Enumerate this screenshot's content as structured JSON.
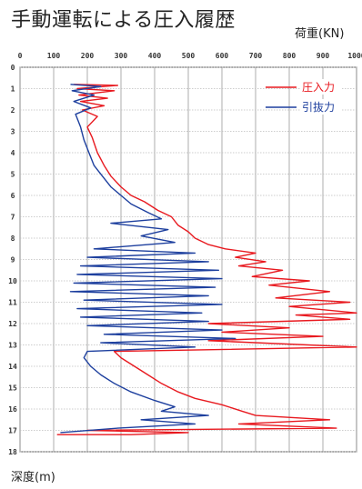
{
  "title": "手動運転による圧入履歴",
  "x_unit_label": "荷重(KN)",
  "y_unit_label": "深度(m)",
  "colors": {
    "press_in": "#e8191f",
    "pull_out": "#1d3f9e",
    "grid_major": "#9a9a9a",
    "grid_minor": "#bdbdbd"
  },
  "chart_data": {
    "type": "line",
    "title": "手動運転による圧入履歴",
    "xlabel": "荷重(KN)",
    "ylabel": "深度(m)",
    "xlim": [
      0,
      1000
    ],
    "ylim": [
      0,
      18
    ],
    "y_inverted": true,
    "grid": true,
    "legend_position": "top-right",
    "x_ticks": [
      "0",
      "100",
      "200",
      "300",
      "400",
      "500",
      "600",
      "700",
      "800",
      "900",
      "1000"
    ],
    "y_ticks": [
      "0",
      "1",
      "2",
      "3",
      "4",
      "5",
      "6",
      "7",
      "8",
      "9",
      "10",
      "11",
      "12",
      "13",
      "14",
      "15",
      "16",
      "17",
      "18"
    ],
    "series": [
      {
        "name": "圧入力",
        "color": "#e8191f",
        "points": [
          [
            160,
            0.8
          ],
          [
            290,
            0.85
          ],
          [
            170,
            1.0
          ],
          [
            280,
            1.1
          ],
          [
            175,
            1.3
          ],
          [
            260,
            1.45
          ],
          [
            180,
            1.6
          ],
          [
            250,
            1.8
          ],
          [
            185,
            2.0
          ],
          [
            230,
            2.3
          ],
          [
            200,
            2.8
          ],
          [
            215,
            3.3
          ],
          [
            230,
            4.0
          ],
          [
            250,
            4.6
          ],
          [
            270,
            5.1
          ],
          [
            300,
            5.6
          ],
          [
            330,
            6.0
          ],
          [
            370,
            6.3
          ],
          [
            410,
            6.7
          ],
          [
            450,
            7.0
          ],
          [
            470,
            7.4
          ],
          [
            500,
            7.7
          ],
          [
            520,
            8.0
          ],
          [
            560,
            8.3
          ],
          [
            610,
            8.5
          ],
          [
            700,
            8.7
          ],
          [
            640,
            8.9
          ],
          [
            730,
            9.1
          ],
          [
            650,
            9.3
          ],
          [
            780,
            9.5
          ],
          [
            690,
            9.8
          ],
          [
            860,
            10.0
          ],
          [
            740,
            10.2
          ],
          [
            920,
            10.5
          ],
          [
            760,
            10.8
          ],
          [
            980,
            11.0
          ],
          [
            800,
            11.2
          ],
          [
            1000,
            11.5
          ],
          [
            820,
            11.6
          ],
          [
            980,
            11.8
          ],
          [
            560,
            12.0
          ],
          [
            800,
            12.2
          ],
          [
            600,
            12.4
          ],
          [
            900,
            12.6
          ],
          [
            560,
            12.8
          ],
          [
            1000,
            13.1
          ],
          [
            280,
            13.3
          ],
          [
            300,
            13.6
          ],
          [
            340,
            14.0
          ],
          [
            380,
            14.4
          ],
          [
            420,
            14.8
          ],
          [
            470,
            15.2
          ],
          [
            520,
            15.5
          ],
          [
            600,
            15.8
          ],
          [
            660,
            16.1
          ],
          [
            700,
            16.3
          ],
          [
            920,
            16.5
          ],
          [
            650,
            16.7
          ],
          [
            940,
            16.9
          ],
          [
            200,
            17.0
          ],
          [
            500,
            17.1
          ],
          [
            330,
            17.2
          ],
          [
            110,
            17.2
          ]
        ]
      },
      {
        "name": "引抜力",
        "color": "#1d3f9e",
        "points": [
          [
            150,
            0.8
          ],
          [
            240,
            0.9
          ],
          [
            155,
            1.1
          ],
          [
            220,
            1.3
          ],
          [
            160,
            1.6
          ],
          [
            210,
            1.9
          ],
          [
            165,
            2.2
          ],
          [
            180,
            2.8
          ],
          [
            190,
            3.4
          ],
          [
            205,
            4.0
          ],
          [
            220,
            4.6
          ],
          [
            245,
            5.1
          ],
          [
            270,
            5.6
          ],
          [
            300,
            6.0
          ],
          [
            330,
            6.4
          ],
          [
            380,
            6.8
          ],
          [
            420,
            7.1
          ],
          [
            270,
            7.3
          ],
          [
            440,
            7.6
          ],
          [
            360,
            7.9
          ],
          [
            460,
            8.2
          ],
          [
            220,
            8.5
          ],
          [
            520,
            8.7
          ],
          [
            200,
            8.9
          ],
          [
            560,
            9.1
          ],
          [
            180,
            9.3
          ],
          [
            590,
            9.5
          ],
          [
            170,
            9.7
          ],
          [
            600,
            9.9
          ],
          [
            160,
            10.1
          ],
          [
            580,
            10.3
          ],
          [
            150,
            10.5
          ],
          [
            560,
            10.7
          ],
          [
            190,
            10.9
          ],
          [
            600,
            11.1
          ],
          [
            170,
            11.3
          ],
          [
            540,
            11.5
          ],
          [
            180,
            11.7
          ],
          [
            560,
            11.9
          ],
          [
            200,
            12.1
          ],
          [
            600,
            12.3
          ],
          [
            250,
            12.5
          ],
          [
            640,
            12.7
          ],
          [
            240,
            12.9
          ],
          [
            520,
            13.1
          ],
          [
            200,
            13.3
          ],
          [
            190,
            13.6
          ],
          [
            210,
            14.0
          ],
          [
            240,
            14.4
          ],
          [
            280,
            14.8
          ],
          [
            330,
            15.2
          ],
          [
            400,
            15.6
          ],
          [
            460,
            15.9
          ],
          [
            420,
            16.1
          ],
          [
            560,
            16.3
          ],
          [
            360,
            16.5
          ],
          [
            520,
            16.7
          ],
          [
            290,
            16.9
          ],
          [
            120,
            17.1
          ]
        ]
      }
    ]
  }
}
